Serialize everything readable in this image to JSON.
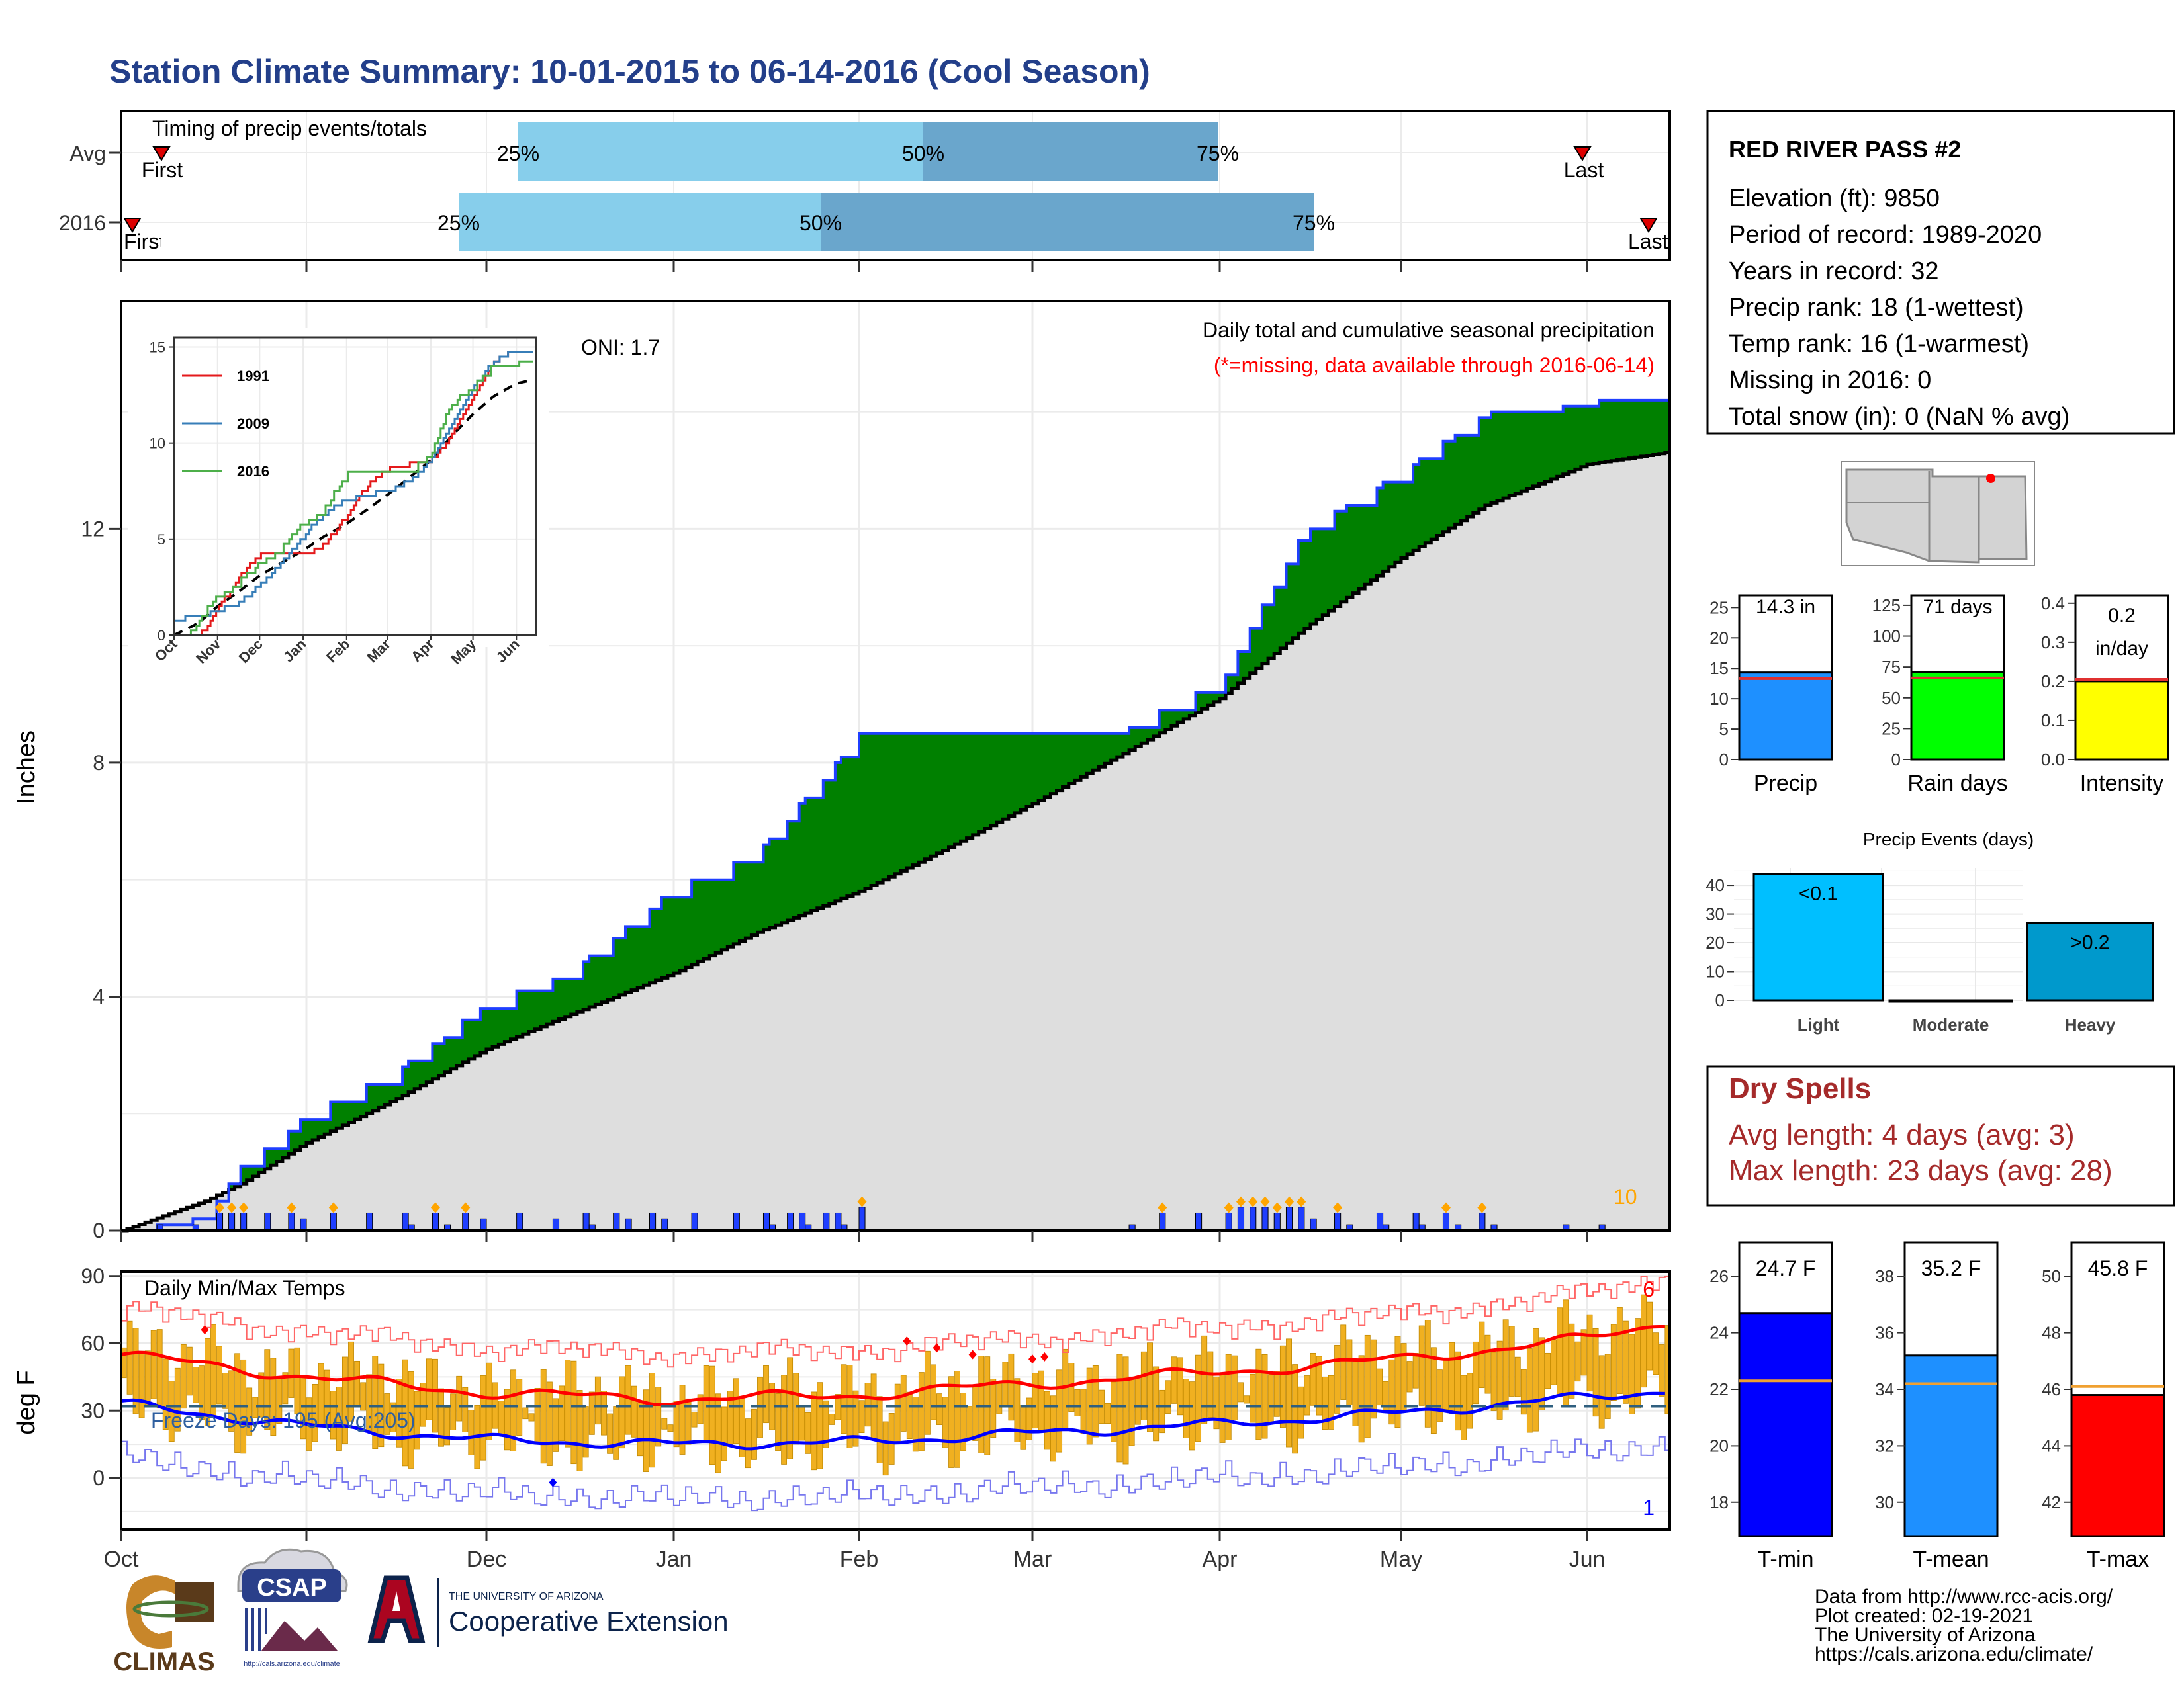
{
  "title": "Station Climate Summary: 10-01-2015 to 06-14-2016 (Cool Season)",
  "colors": {
    "title": "#233f8a",
    "light_blue": "#87ceeb",
    "mid_blue": "#6aa6cc",
    "green": "#008000",
    "brown": "#7a4b0c",
    "gray_fill": "#dedede",
    "precip_bar": "#1f3fff",
    "orange": "#ffa500",
    "red": "#ff0000",
    "blue": "#0000ff",
    "dry_red": "#a52a2a"
  },
  "timing": {
    "label": "Timing of precip events/totals",
    "rows": [
      {
        "name": "Avg",
        "first_label": "First",
        "last_label": "Last",
        "p25": "25%",
        "p50": "50%",
        "p75": "75%"
      },
      {
        "name": "2016",
        "first_label": "First",
        "last_label": "Last",
        "p25": "25%",
        "p50": "50%",
        "p75": "75%"
      }
    ]
  },
  "precip_panel": {
    "ylabel": "Inches",
    "yticks": [
      "0",
      "4",
      "8",
      "12"
    ],
    "oni": "ONI: 1.7",
    "caption1": "Daily total and cumulative seasonal precipitation",
    "caption2": "(*=missing, data available through 2016-06-14)",
    "count_label": "10"
  },
  "inset": {
    "yticks": [
      "0",
      "5",
      "10",
      "15"
    ],
    "xticks": [
      "Oct",
      "Nov",
      "Dec",
      "Jan",
      "Feb",
      "Mar",
      "Apr",
      "May",
      "Jun"
    ],
    "legend": [
      {
        "name": "1991",
        "color": "#e41a1c"
      },
      {
        "name": "2009",
        "color": "#377eb8"
      },
      {
        "name": "2016",
        "color": "#4daf4a"
      }
    ]
  },
  "temp_panel": {
    "ylabel": "deg F",
    "label": "Daily Min/Max Temps",
    "freeze": "Freeze Days: 195 (Avg:205)",
    "yticks": [
      "0",
      "30",
      "60",
      "90"
    ],
    "count_top": "6",
    "count_bottom": "1"
  },
  "xaxis_months": [
    "Oct",
    "Nov",
    "Dec",
    "Jan",
    "Feb",
    "Mar",
    "Apr",
    "May",
    "Jun"
  ],
  "station": {
    "name": "RED RIVER PASS #2",
    "lines": [
      "Elevation (ft): 9850",
      "Period of record: 1989-2020",
      "Years in record: 32",
      "Precip rank: 18 (1-wettest)",
      "Temp rank: 16 (1-warmest)",
      "Missing in 2016: 0",
      "Total snow (in): 0 (NaN % avg)"
    ]
  },
  "summary_bars": [
    {
      "label": "Precip",
      "value_text": "14.3 in",
      "value": 14.3,
      "avg": 13.3,
      "yticks": [
        "0",
        "5",
        "10",
        "15",
        "20",
        "25"
      ],
      "ymax": 27,
      "color": "#1e90ff"
    },
    {
      "label": "Rain days",
      "value_text": "71 days",
      "value": 71,
      "avg": 66,
      "yticks": [
        "0",
        "25",
        "50",
        "75",
        "100",
        "125"
      ],
      "ymax": 133,
      "color": "#00ff00"
    },
    {
      "label": "Intensity",
      "value_text1": "0.2",
      "value_text2": "in/day",
      "value": 0.2,
      "avg": 0.205,
      "yticks": [
        "0.0",
        "0.1",
        "0.2",
        "0.3",
        "0.4"
      ],
      "ymax": 0.42,
      "color": "#ffff00"
    }
  ],
  "events": {
    "title": "Precip Events (days)",
    "yticks": [
      "0",
      "10",
      "20",
      "30",
      "40"
    ],
    "ymax": 46,
    "bars": [
      {
        "category": "Light",
        "label": "<0.1",
        "value": 44,
        "color": "#00bfff"
      },
      {
        "category": "Moderate",
        "label": "",
        "value": 0,
        "color": "#0099cc"
      },
      {
        "category": "Heavy",
        "label": ">0.2",
        "value": 27,
        "color": "#0099cc"
      }
    ]
  },
  "dry_spells": {
    "title": "Dry Spells",
    "avg": "Avg length: 4 days (avg: 3)",
    "max": "Max length: 23 days (avg: 28)"
  },
  "temp_bars": [
    {
      "label": "T-min",
      "value_text": "24.7 F",
      "value": 24.7,
      "avg": 22.3,
      "ymin": 16.8,
      "ymax": 27.2,
      "yticks": [
        "18",
        "20",
        "22",
        "24",
        "26"
      ],
      "color": "#0000ff"
    },
    {
      "label": "T-mean",
      "value_text": "35.2 F",
      "value": 35.2,
      "avg": 34.2,
      "ymin": 28.8,
      "ymax": 39.2,
      "yticks": [
        "30",
        "32",
        "34",
        "36",
        "38"
      ],
      "color": "#1e90ff"
    },
    {
      "label": "T-max",
      "value_text": "45.8 F",
      "value": 45.8,
      "avg": 46.1,
      "ymin": 40.8,
      "ymax": 51.2,
      "yticks": [
        "42",
        "44",
        "46",
        "48",
        "50"
      ],
      "color": "#ff0000"
    }
  ],
  "footer": {
    "lines": [
      "Data from http://www.rcc-acis.org/",
      "Plot created: 02-19-2021",
      "The University of Arizona",
      "https://cals.arizona.edu/climate/"
    ],
    "climas": "CLIMAS",
    "csap": "CSAP",
    "csap_url": "http://cals.arizona.edu/climate",
    "ua_small": "THE UNIVERSITY OF ARIZONA",
    "ua_big": "Cooperative Extension"
  },
  "chart_data": [
    {
      "type": "area",
      "title": "Daily total and cumulative seasonal precipitation",
      "ylabel": "Inches",
      "x": [
        "2015-10-01",
        "2015-10-15",
        "2015-10-21",
        "2015-11-01",
        "2015-11-15",
        "2015-12-01",
        "2015-12-15",
        "2016-01-01",
        "2016-01-15",
        "2016-02-01",
        "2016-02-15",
        "2016-03-01",
        "2016-03-15",
        "2016-04-01",
        "2016-04-15",
        "2016-05-01",
        "2016-05-15",
        "2016-06-01",
        "2016-06-14"
      ],
      "series": [
        {
          "name": "2016",
          "values": [
            0,
            0.3,
            1.1,
            2.0,
            2.7,
            3.9,
            4.5,
            5.9,
            6.5,
            8.5,
            8.5,
            8.5,
            8.6,
            9.4,
            12.0,
            13.0,
            14.0,
            14.2,
            14.3
          ]
        },
        {
          "name": "Avg",
          "values": [
            0,
            0.5,
            0.8,
            1.5,
            2.2,
            3.1,
            3.7,
            4.4,
            5.1,
            5.8,
            6.5,
            7.3,
            8.1,
            9.1,
            10.3,
            11.5,
            12.4,
            13.1,
            13.3
          ]
        }
      ],
      "ylim": [
        0,
        15.5
      ]
    },
    {
      "type": "line",
      "title": "Daily Min/Max Temps",
      "ylabel": "deg F",
      "x": [
        "2015-10-01",
        "2015-11-01",
        "2015-12-01",
        "2016-01-01",
        "2016-02-01",
        "2016-03-01",
        "2016-04-01",
        "2016-05-01",
        "2016-06-01",
        "2016-06-14"
      ],
      "series": [
        {
          "name": "Avg max",
          "values": [
            55,
            45,
            38,
            35,
            37,
            42,
            47,
            53,
            62,
            69
          ]
        },
        {
          "name": "Avg min",
          "values": [
            33,
            23,
            17,
            15,
            16,
            20,
            24,
            29,
            36,
            39
          ]
        }
      ],
      "ylim": [
        -23,
        92
      ]
    }
  ]
}
